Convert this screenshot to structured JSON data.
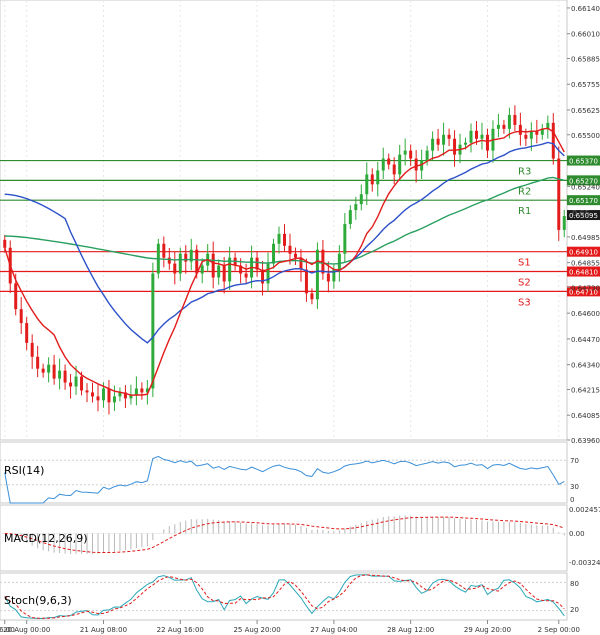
{
  "chart_data": {
    "type": "candlestick",
    "price_axis": {
      "ticks": [
        "0.66140",
        "0.66010",
        "0.65885",
        "0.65755",
        "0.65625",
        "0.65500",
        "0.65240",
        "0.64985",
        "0.64855",
        "0.64730",
        "0.64600",
        "0.64470",
        "0.64340",
        "0.64215",
        "0.64085",
        "0.63960"
      ],
      "ylim": [
        0.6396,
        0.6618
      ]
    },
    "x_axis": {
      "ticks": [
        {
          "label": "16:00",
          "index": 0
        },
        {
          "label": "20 Aug 00:00",
          "index": 4
        },
        {
          "label": "21 Aug 08:00",
          "index": 18
        },
        {
          "label": "22 Aug 16:00",
          "index": 32
        },
        {
          "label": "25 Aug 20:00",
          "index": 46
        },
        {
          "label": "27 Aug 04:00",
          "index": 60
        },
        {
          "label": "28 Aug 12:00",
          "index": 74
        },
        {
          "label": "29 Aug 20:00",
          "index": 88
        },
        {
          "label": "2 Sep 00:00",
          "index": 101
        }
      ],
      "count": 103
    },
    "levels": [
      {
        "name": "R3",
        "value": 0.6537,
        "label": "0.65370",
        "color": "#2e8b2e"
      },
      {
        "name": "R2",
        "value": 0.6527,
        "label": "0.65270",
        "color": "#2e8b2e"
      },
      {
        "name": "R1",
        "value": 0.6517,
        "label": "0.65170",
        "color": "#2e8b2e"
      },
      {
        "name": "S1",
        "value": 0.6491,
        "label": "0.64910",
        "color": "#e41a1a"
      },
      {
        "name": "S2",
        "value": 0.6481,
        "label": "0.64810",
        "color": "#e41a1a"
      },
      {
        "name": "S3",
        "value": 0.6471,
        "label": "0.64710",
        "color": "#e41a1a"
      }
    ],
    "current_price": {
      "value": 0.65095,
      "label": "0.65095",
      "color": "#1a1a1a"
    },
    "axis_fragment": "0.65",
    "colors": {
      "bull": "#2eaa3a",
      "bear": "#e21b1b",
      "ma_fast": "#e21b1b",
      "ma_mid": "#2c51c9",
      "ma_slow": "#2aa060"
    },
    "closes": [
      0.6493,
      0.6475,
      0.6462,
      0.6455,
      0.6445,
      0.6438,
      0.6432,
      0.643,
      0.6434,
      0.6427,
      0.6431,
      0.6425,
      0.6423,
      0.6428,
      0.6421,
      0.642,
      0.6418,
      0.6416,
      0.6422,
      0.6415,
      0.6418,
      0.642,
      0.6417,
      0.6419,
      0.6422,
      0.642,
      0.6422,
      0.648,
      0.6495,
      0.6488,
      0.6485,
      0.648,
      0.649,
      0.6486,
      0.6492,
      0.648,
      0.6484,
      0.649,
      0.6478,
      0.6484,
      0.6476,
      0.6488,
      0.6484,
      0.648,
      0.6478,
      0.6488,
      0.6482,
      0.6475,
      0.6485,
      0.6495,
      0.65,
      0.6494,
      0.649,
      0.6488,
      0.6482,
      0.647,
      0.6467,
      0.6492,
      0.648,
      0.6476,
      0.6482,
      0.649,
      0.6505,
      0.6512,
      0.6515,
      0.652,
      0.653,
      0.6525,
      0.6532,
      0.6538,
      0.6535,
      0.653,
      0.654,
      0.6542,
      0.6538,
      0.6532,
      0.6537,
      0.6542,
      0.6548,
      0.6545,
      0.655,
      0.6548,
      0.654,
      0.6545,
      0.6546,
      0.6552,
      0.6548,
      0.655,
      0.6542,
      0.6553,
      0.6555,
      0.6553,
      0.656,
      0.6555,
      0.655,
      0.6548,
      0.6552,
      0.655,
      0.6553,
      0.6556,
      0.6538,
      0.6502,
      0.6509
    ]
  },
  "rsi": {
    "label": "RSI(14)",
    "ticks": [
      "70",
      "30",
      "0"
    ]
  },
  "macd": {
    "label": "MACD(12,26,9)",
    "ticks": [
      "0.002457",
      "0.00",
      "-0.003249"
    ]
  },
  "stoch": {
    "label": "Stoch(9,6,3)",
    "ticks": [
      "80",
      "20"
    ]
  }
}
